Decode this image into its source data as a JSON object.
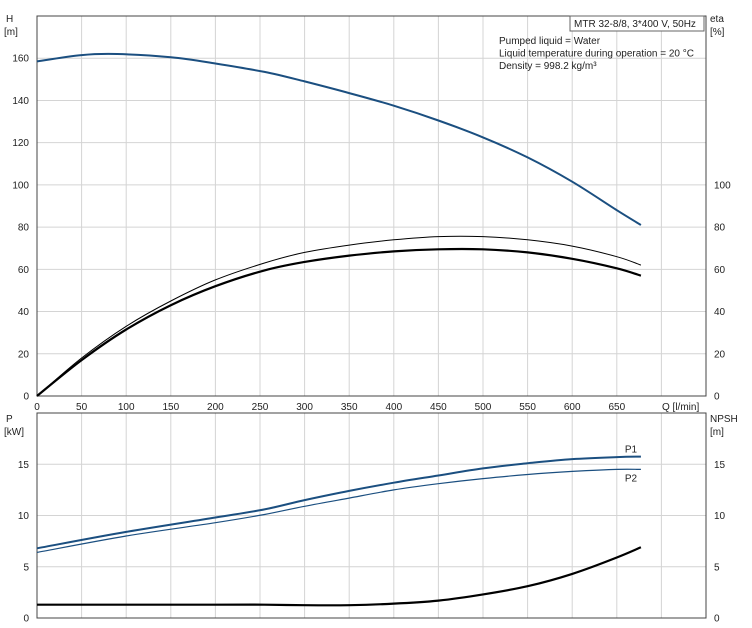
{
  "chart_data": [
    {
      "type": "line",
      "panel": "head-efficiency",
      "title_box": "MTR 32-8/8, 3*400 V, 50Hz",
      "info_lines": [
        "Pumped liquid = Water",
        "Liquid temperature during operation = 20 °C",
        "Density = 998.2 kg/m³"
      ],
      "ylabel_left": [
        "H",
        "[m]"
      ],
      "ylabel_right": [
        "eta",
        "[%]"
      ],
      "xlabel": "Q [l/min]",
      "xlim": [
        0,
        750
      ],
      "ylim": [
        0,
        180
      ],
      "x_ticks": [
        0,
        50,
        100,
        150,
        200,
        250,
        300,
        350,
        400,
        450,
        500,
        550,
        600,
        650
      ],
      "y_ticks_left": [
        0,
        20,
        40,
        60,
        80,
        100,
        120,
        140,
        160
      ],
      "y_ticks_right": [
        0,
        20,
        40,
        60,
        80,
        100
      ],
      "grid": true,
      "series": [
        {
          "role": "head",
          "color": "#1b4f80",
          "x": [
            0,
            50,
            90,
            150,
            200,
            255,
            300,
            350,
            400,
            450,
            500,
            550,
            600,
            650,
            677
          ],
          "y": [
            158.5,
            161.5,
            162,
            160.5,
            157.5,
            153.5,
            149,
            143.5,
            137.5,
            130.5,
            122.5,
            113,
            101.5,
            88,
            81
          ]
        },
        {
          "role": "eta-total-thin",
          "color": "#000000",
          "x": [
            0,
            50,
            100,
            150,
            200,
            255,
            300,
            350,
            400,
            450,
            500,
            550,
            600,
            650,
            677
          ],
          "y": [
            0,
            18,
            33,
            45,
            55,
            63,
            68,
            71.5,
            74,
            75.5,
            75.5,
            74,
            71,
            66,
            62
          ]
        },
        {
          "role": "eta-pump-bold",
          "color": "#000000",
          "x": [
            0,
            50,
            100,
            150,
            200,
            255,
            300,
            350,
            400,
            450,
            500,
            550,
            600,
            650,
            677
          ],
          "y": [
            0,
            17,
            31.5,
            43,
            52,
            59.5,
            63.5,
            66.5,
            68.5,
            69.5,
            69.5,
            68,
            65,
            60.5,
            57
          ]
        }
      ]
    },
    {
      "type": "line",
      "panel": "power-npsh",
      "ylabel_left": [
        "P",
        "[kW]"
      ],
      "ylabel_right": [
        "NPSH",
        "[m]"
      ],
      "xlim": [
        0,
        750
      ],
      "ylim": [
        0,
        20
      ],
      "y_ticks_left": [
        0,
        5,
        10,
        15
      ],
      "y_ticks_right": [
        0,
        5,
        10,
        15
      ],
      "grid": true,
      "series": [
        {
          "name": "P1",
          "color": "#1b4f80",
          "x": [
            0,
            100,
            200,
            255,
            300,
            350,
            400,
            450,
            500,
            550,
            600,
            650,
            677
          ],
          "y": [
            6.8,
            8.4,
            9.8,
            10.6,
            11.5,
            12.4,
            13.2,
            13.9,
            14.6,
            15.1,
            15.5,
            15.7,
            15.75
          ]
        },
        {
          "name": "P2",
          "color": "#1b4f80",
          "x": [
            0,
            100,
            200,
            255,
            300,
            350,
            400,
            450,
            500,
            550,
            600,
            650,
            677
          ],
          "y": [
            6.4,
            8.0,
            9.3,
            10.1,
            10.9,
            11.7,
            12.5,
            13.1,
            13.6,
            14.0,
            14.3,
            14.5,
            14.5
          ]
        },
        {
          "role": "npsh",
          "color": "#000000",
          "x": [
            0,
            100,
            200,
            255,
            300,
            350,
            400,
            450,
            500,
            550,
            600,
            650,
            677
          ],
          "y": [
            1.3,
            1.3,
            1.3,
            1.3,
            1.25,
            1.25,
            1.4,
            1.7,
            2.3,
            3.1,
            4.3,
            5.9,
            6.9
          ]
        }
      ]
    }
  ]
}
